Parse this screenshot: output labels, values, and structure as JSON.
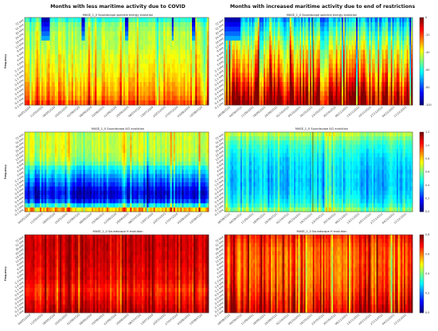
{
  "column_titles": [
    "Months with less maritime activity due to COVID",
    "Months with increased maritime activity due to end of restrictions"
  ],
  "chart_data": [
    {
      "id": "left-energy",
      "type": "heatmap",
      "title": "MASE_1_0 Soundscape spectral energy evolution",
      "ylabel": "Frequency",
      "y_ticks": [
        "72 kHz",
        "51 kHz",
        "36 kHz",
        "26 kHz",
        "18 kHz",
        "13 kHz",
        "9 kHz",
        "6 kHz",
        "4 kHz",
        "3 kHz",
        "2.3 kHz",
        "1.6 kHz",
        "1.1 kHz",
        "0.8 kHz",
        "0.6 kHz",
        "0.4 kHz",
        "0.3 kHz",
        "0.2 kHz",
        "0.1 kHz"
      ],
      "x_ticks": [
        "04/05/2020",
        "11/05/2020",
        "18/05/2020",
        "25/05/2020",
        "01/06/2020",
        "08/06/2020",
        "15/06/2020",
        "22/06/2020",
        "29/06/2020",
        "06/07/2020",
        "13/07/2020",
        "20/07/2020",
        "27/07/2020",
        "03/08/2020",
        "10/08/2020"
      ],
      "rows": 19,
      "cols": 110,
      "row_profile": [
        0.42,
        0.5,
        0.52,
        0.55,
        0.55,
        0.55,
        0.56,
        0.58,
        0.6,
        0.6,
        0.62,
        0.62,
        0.64,
        0.66,
        0.68,
        0.7,
        0.72,
        0.75,
        0.8
      ],
      "stripe_strength": 0.08,
      "dark_top_cols": [
        10,
        11,
        12,
        13,
        14,
        34,
        35,
        60,
        61,
        88,
        100,
        101
      ],
      "colorbar": null
    },
    {
      "id": "right-energy",
      "type": "heatmap",
      "title": "MASE_1_0 Soundscape spectral energy evolution",
      "ylabel": "Frequency",
      "y_ticks": [
        "72 kHz",
        "51 kHz",
        "36 kHz",
        "26 kHz",
        "18 kHz",
        "13 kHz",
        "9 kHz",
        "6 kHz",
        "4 kHz",
        "3 kHz",
        "2.3 kHz",
        "1.6 kHz",
        "1.1 kHz",
        "0.8 kHz",
        "0.6 kHz",
        "0.4 kHz",
        "0.3 kHz",
        "0.2 kHz",
        "0.1 kHz"
      ],
      "x_ticks": [
        "28/08/2021",
        "04/09/2021",
        "11/09/2021",
        "18/09/2021",
        "25/09/2021",
        "02/10/2021",
        "09/10/2021",
        "16/10/2021",
        "23/10/2021",
        "30/10/2021",
        "06/11/2021",
        "13/11/2021",
        "20/11/2021",
        "27/11/2021",
        "04/12/2021",
        "11/12/2021"
      ],
      "rows": 19,
      "cols": 130,
      "row_profile": [
        0.3,
        0.36,
        0.4,
        0.44,
        0.48,
        0.52,
        0.55,
        0.6,
        0.62,
        0.65,
        0.68,
        0.7,
        0.74,
        0.78,
        0.82,
        0.86,
        0.9,
        0.94,
        0.97
      ],
      "stripe_strength": 0.22,
      "dark_top_cols": [
        0,
        1,
        2,
        3,
        4,
        5,
        6,
        7,
        8,
        9,
        10
      ],
      "colorbar": {
        "min": -100,
        "max": 0,
        "ticks": [
          "0",
          "-20",
          "-40",
          "-60",
          "-80",
          "-100"
        ]
      }
    },
    {
      "id": "left-aci",
      "type": "heatmap",
      "title": "MASE_1_0 Soundscape ACI evolution",
      "ylabel": "Frequency",
      "y_ticks": [
        "72 kHz",
        "51 kHz",
        "36 kHz",
        "26 kHz",
        "18 kHz",
        "13 kHz",
        "9 kHz",
        "6 kHz",
        "4 kHz",
        "3 kHz",
        "2.3 kHz",
        "1.6 kHz",
        "1.1 kHz",
        "0.8 kHz",
        "0.6 kHz",
        "0.4 kHz",
        "0.3 kHz",
        "0.2 kHz",
        "0.1 kHz"
      ],
      "x_ticks": [
        "04/05/2020",
        "11/05/2020",
        "18/05/2020",
        "25/05/2020",
        "01/06/2020",
        "08/06/2020",
        "15/06/2020",
        "22/06/2020",
        "29/06/2020",
        "06/07/2020",
        "13/07/2020",
        "20/07/2020",
        "27/07/2020",
        "03/08/2020",
        "10/08/2020"
      ],
      "rows": 19,
      "cols": 110,
      "row_profile": [
        0.58,
        0.58,
        0.58,
        0.58,
        0.58,
        0.56,
        0.54,
        0.5,
        0.4,
        0.36,
        0.3,
        0.25,
        0.2,
        0.14,
        0.1,
        0.12,
        0.2,
        0.4,
        0.7
      ],
      "stripe_strength": 0.1,
      "dark_top_cols": [],
      "colorbar": null
    },
    {
      "id": "right-aci",
      "type": "heatmap",
      "title": "MASE_1_0 Soundscape ACI evolution",
      "ylabel": "Frequency",
      "y_ticks": [
        "72 kHz",
        "51 kHz",
        "36 kHz",
        "26 kHz",
        "18 kHz",
        "13 kHz",
        "9 kHz",
        "6 kHz",
        "4 kHz",
        "3 kHz",
        "2.3 kHz",
        "1.6 kHz",
        "1.1 kHz",
        "0.8 kHz",
        "0.6 kHz",
        "0.4 kHz",
        "0.3 kHz",
        "0.2 kHz",
        "0.1 kHz"
      ],
      "x_ticks": [
        "28/08/2021",
        "04/09/2021",
        "11/09/2021",
        "18/09/2021",
        "25/09/2021",
        "02/10/2021",
        "09/10/2021",
        "16/10/2021",
        "23/10/2021",
        "30/10/2021",
        "06/11/2021",
        "13/11/2021",
        "20/11/2021",
        "27/11/2021",
        "04/12/2021",
        "11/12/2021"
      ],
      "rows": 19,
      "cols": 130,
      "row_profile": [
        0.55,
        0.5,
        0.45,
        0.42,
        0.4,
        0.38,
        0.36,
        0.35,
        0.34,
        0.33,
        0.33,
        0.32,
        0.32,
        0.33,
        0.34,
        0.36,
        0.38,
        0.42,
        0.5
      ],
      "stripe_strength": 0.08,
      "dark_top_cols": [],
      "colorbar": {
        "min": 0.0,
        "max": 1.2,
        "ticks": [
          "1.2",
          "1.0",
          "0.8",
          "0.6",
          "0.4",
          "0.2",
          "0.0"
        ]
      }
    },
    {
      "id": "left-h",
      "type": "heatmap",
      "title": "MASE_1_0 Soundscape H evolution",
      "ylabel": "Frequency",
      "y_ticks": [
        "72 kHz",
        "51 kHz",
        "36 kHz",
        "26 kHz",
        "18 kHz",
        "13 kHz",
        "9 kHz",
        "6 kHz",
        "4 kHz",
        "3 kHz",
        "2.3 kHz",
        "1.6 kHz",
        "1.1 kHz",
        "0.8 kHz",
        "0.6 kHz",
        "0.4 kHz",
        "0.3 kHz",
        "0.2 kHz",
        "0.1 kHz"
      ],
      "x_ticks": [
        "04/05/2020",
        "11/05/2020",
        "18/05/2020",
        "25/05/2020",
        "01/06/2020",
        "08/06/2020",
        "15/06/2020",
        "22/06/2020",
        "29/06/2020",
        "06/07/2020",
        "13/07/2020",
        "20/07/2020",
        "27/07/2020",
        "03/08/2020",
        "10/08/2020"
      ],
      "rows": 19,
      "cols": 110,
      "row_profile": [
        0.92,
        0.93,
        0.93,
        0.93,
        0.92,
        0.92,
        0.92,
        0.91,
        0.9,
        0.9,
        0.9,
        0.88,
        0.86,
        0.84,
        0.86,
        0.88,
        0.9,
        0.92,
        0.94
      ],
      "stripe_strength": 0.08,
      "dark_top_cols": [],
      "colorbar": null
    },
    {
      "id": "right-h",
      "type": "heatmap",
      "title": "MASE_1_0 Soundscape H evolution",
      "ylabel": "Frequency",
      "y_ticks": [
        "72 kHz",
        "51 kHz",
        "36 kHz",
        "26 kHz",
        "18 kHz",
        "13 kHz",
        "9 kHz",
        "6 kHz",
        "4 kHz",
        "3 kHz",
        "2.3 kHz",
        "1.6 kHz",
        "1.1 kHz",
        "0.8 kHz",
        "0.6 kHz",
        "0.4 kHz",
        "0.3 kHz",
        "0.2 kHz",
        "0.1 kHz"
      ],
      "x_ticks": [
        "28/08/2021",
        "04/09/2021",
        "11/09/2021",
        "18/09/2021",
        "25/09/2021",
        "02/10/2021",
        "09/10/2021",
        "16/10/2021",
        "23/10/2021",
        "30/10/2021",
        "06/11/2021",
        "13/11/2021",
        "20/11/2021",
        "27/11/2021",
        "04/12/2021",
        "11/12/2021"
      ],
      "rows": 19,
      "cols": 130,
      "row_profile": [
        0.86,
        0.84,
        0.82,
        0.8,
        0.8,
        0.79,
        0.79,
        0.8,
        0.8,
        0.8,
        0.81,
        0.82,
        0.83,
        0.84,
        0.86,
        0.88,
        0.9,
        0.92,
        0.94
      ],
      "stripe_strength": 0.16,
      "dark_top_cols": [],
      "colorbar": {
        "min": 0.0,
        "max": 0.8,
        "ticks": [
          "0.8",
          "0.6",
          "0.4",
          "0.2",
          "0.0"
        ]
      }
    }
  ]
}
